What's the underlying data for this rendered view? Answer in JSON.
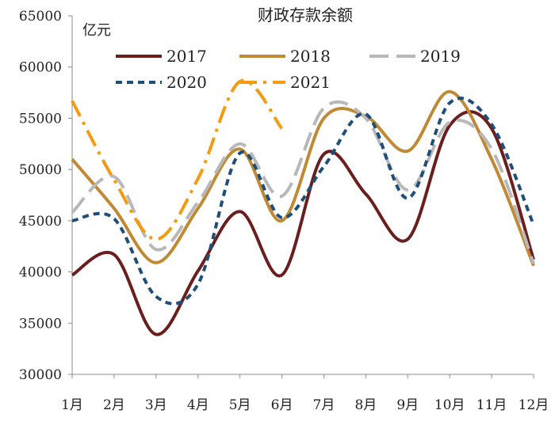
{
  "chart_data": {
    "type": "line",
    "title": "财政存款余额",
    "ylabel": "亿元",
    "xlabel": "",
    "ylim": [
      30000,
      65000
    ],
    "yticks": [
      "30000",
      "35000",
      "40000",
      "45000",
      "50000",
      "55000",
      "60000",
      "65000"
    ],
    "categories": [
      "1月",
      "2月",
      "3月",
      "4月",
      "5月",
      "6月",
      "7月",
      "8月",
      "9月",
      "10月",
      "11月",
      "12月"
    ],
    "grid": false,
    "legend_position": "top",
    "series": [
      {
        "name": "2017",
        "color": "#6B1E1E",
        "dash": "solid",
        "values": [
          39700,
          41700,
          33900,
          40100,
          45900,
          39700,
          51500,
          47600,
          43200,
          54300,
          54000,
          41200
        ]
      },
      {
        "name": "2018",
        "color": "#C08A35",
        "dash": "solid",
        "values": [
          51000,
          46200,
          40900,
          46200,
          52000,
          45000,
          55000,
          55200,
          51800,
          57600,
          51000,
          40600
        ]
      },
      {
        "name": "2019",
        "color": "#B8B8B8",
        "dash": "longdash",
        "values": [
          45800,
          49300,
          42200,
          46800,
          52500,
          47400,
          56000,
          55000,
          48000,
          54600,
          52000,
          40800
        ]
      },
      {
        "name": "2020",
        "color": "#1F4E79",
        "dash": "shortdash",
        "values": [
          45000,
          45200,
          37600,
          38800,
          51600,
          45300,
          50300,
          55400,
          47200,
          56500,
          54400,
          44600
        ]
      },
      {
        "name": "2021",
        "color": "#F39C12",
        "dash": "dashdot",
        "values": [
          56700,
          49000,
          43200,
          49100,
          58600,
          54000,
          null,
          null,
          null,
          null,
          null,
          null
        ]
      }
    ]
  }
}
